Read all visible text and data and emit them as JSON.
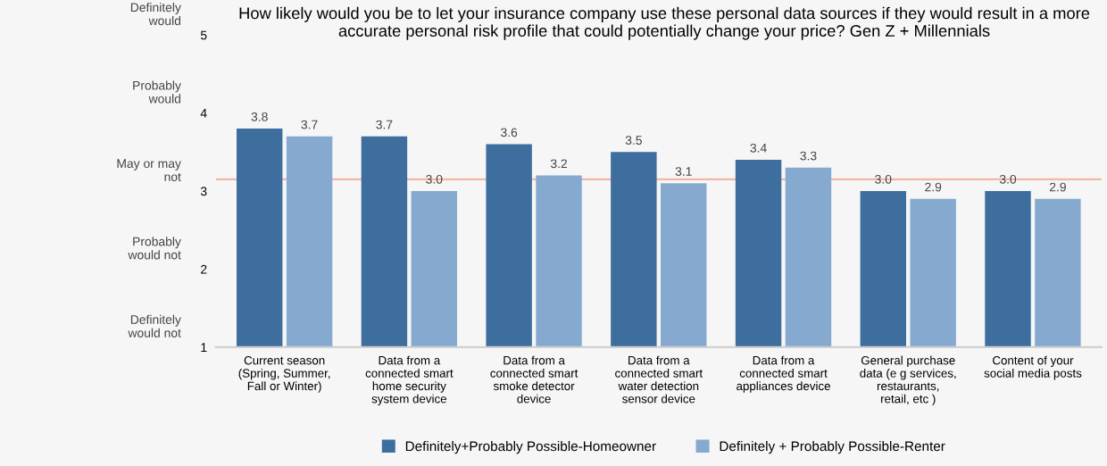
{
  "chart_data": {
    "type": "bar",
    "title": "How likely would you be to let your insurance company use these personal data sources if they would result in a more accurate personal risk profile that could potentially change your price? Gen Z + Millennials",
    "categories": [
      "Current season (Spring, Summer, Fall or Winter)",
      "Data from a connected smart home security system device",
      "Data from a connected smart smoke detector device",
      "Data from a connected smart water detection sensor device",
      "Data from a connected smart appliances device",
      "General purchase data (e g services, restaurants, retail, etc )",
      "Content of your social media posts"
    ],
    "series": [
      {
        "name": "Definitely+Probably Possible-Homeowner",
        "color": "#3d6e9e",
        "values": [
          3.8,
          3.7,
          3.6,
          3.5,
          3.4,
          3.0,
          3.0
        ],
        "value_labels": [
          "3.8",
          "3.7",
          "3.6",
          "3.5",
          "3.4",
          "3.0",
          "3.0"
        ]
      },
      {
        "name": "Definitely + Probably Possible-Renter",
        "color": "#86a9d0",
        "values": [
          3.7,
          3.0,
          3.2,
          3.1,
          3.3,
          2.9,
          2.9
        ],
        "value_labels": [
          "3.7",
          "3.0",
          "3.2",
          "3.1",
          "3.3",
          "2.9",
          "2.9"
        ]
      }
    ],
    "ylim": [
      1,
      5
    ],
    "yticks": [
      1,
      2,
      3,
      4,
      5
    ],
    "annotations": [
      "Definitely would not",
      "Probably would not",
      "May or may not",
      "Probably would",
      "Definitely would"
    ],
    "ref_lines": [
      {
        "axis": "y",
        "value": 3.15,
        "color": "#f2b6a4"
      }
    ],
    "legend": "bottom",
    "grid": false
  }
}
